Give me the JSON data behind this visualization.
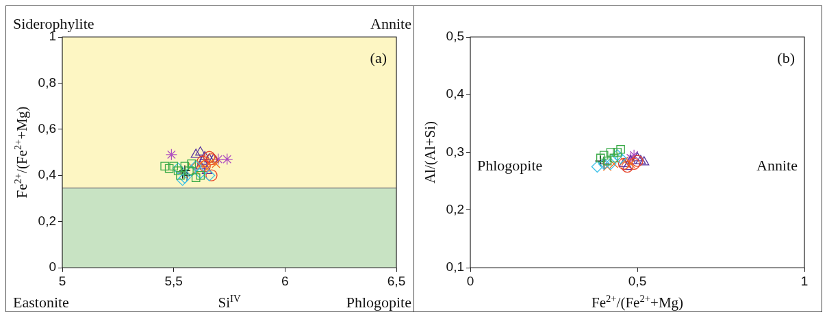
{
  "chart_data": [
    {
      "type": "scatter",
      "xlabel": "Si$^{IV}$",
      "ylabel": "Fe$^{2+}$/(Fe$^{2+}$+Mg)",
      "xlim": [
        5,
        6.5
      ],
      "ylim": [
        0,
        1
      ],
      "xticks": [
        5,
        {
          "value": 5.5,
          "label": "5,5"
        },
        6,
        {
          "value": 6.5,
          "label": "6,5"
        }
      ],
      "yticks": [
        0,
        {
          "value": 0.2,
          "label": "0,2"
        },
        {
          "value": 0.4,
          "label": "0,4"
        },
        {
          "value": 0.6,
          "label": "0,6"
        },
        {
          "value": 0.8,
          "label": "0,8"
        },
        1
      ],
      "bands": [
        {
          "axis": "y",
          "from": 0,
          "to": 0.345,
          "color": "#c8e3c3"
        },
        {
          "axis": "y",
          "from": 0.345,
          "to": 1,
          "color": "#fdf6c3"
        }
      ],
      "ref_lines": [
        {
          "axis": "y",
          "value": 0.345,
          "color": "#555566"
        }
      ],
      "annotations": [
        "(a)",
        "Siderophylite",
        "Annite",
        "Eastonite",
        "Phlogopite"
      ],
      "series": [
        {
          "color": "#3aaa48",
          "marker": "square",
          "x": [
            5.46,
            5.48,
            5.5,
            5.52,
            5.53,
            5.55,
            5.57,
            5.58,
            5.6,
            5.62
          ],
          "values": [
            0.44,
            0.43,
            0.44,
            0.42,
            0.4,
            0.44,
            0.42,
            0.45,
            0.39,
            0.4
          ]
        },
        {
          "color": "#3cc0e8",
          "marker": "diamond",
          "x": [
            5.52,
            5.55,
            5.58,
            5.6,
            5.62,
            5.66,
            5.54
          ],
          "values": [
            0.43,
            0.39,
            0.42,
            0.44,
            0.41,
            0.4,
            0.38
          ]
        },
        {
          "color": "#f07020",
          "marker": "x",
          "x": [
            5.58,
            5.62,
            5.65,
            5.67,
            5.69,
            5.6
          ],
          "values": [
            0.44,
            0.45,
            0.43,
            0.46,
            0.45,
            0.42
          ]
        },
        {
          "color": "#e8452a",
          "marker": "circle",
          "x": [
            5.63,
            5.66,
            5.67,
            5.64,
            5.67
          ],
          "values": [
            0.46,
            0.48,
            0.47,
            0.44,
            0.4
          ]
        },
        {
          "color": "#5a35a0",
          "marker": "triangle",
          "x": [
            5.6,
            5.62,
            5.64,
            5.63,
            5.66,
            5.68,
            5.62,
            5.65
          ],
          "values": [
            0.49,
            0.5,
            0.48,
            0.46,
            0.47,
            0.47,
            0.44,
            0.42
          ]
        },
        {
          "color": "#b050c0",
          "x": [
            5.49,
            5.74,
            5.7
          ],
          "values": [
            0.49,
            0.47,
            0.47
          ]
        },
        {
          "color": "#1a1a1a",
          "marker": "cross",
          "x": [
            5.54,
            5.56,
            5.55
          ],
          "values": [
            0.41,
            0.4,
            0.42
          ]
        }
      ]
    },
    {
      "type": "scatter",
      "xlabel": "Fe$^{2+}$/(Fe$^{2+}$+Mg)",
      "ylabel": "Al/(Al+Si)",
      "xlim": [
        0,
        1
      ],
      "ylim": [
        0.1,
        0.5
      ],
      "xticks": [
        0,
        {
          "value": 0.5,
          "label": "0,5"
        },
        1
      ],
      "yticks": [
        {
          "value": 0.1,
          "label": "0,1"
        },
        {
          "value": 0.2,
          "label": "0,2"
        },
        {
          "value": 0.3,
          "label": "0,3"
        },
        {
          "value": 0.4,
          "label": "0,4"
        },
        {
          "value": 0.5,
          "label": "0,5"
        }
      ],
      "annotations": [
        "(b)",
        "Phlogopite",
        "Annite"
      ],
      "series": [
        {
          "color": "#3aaa48",
          "marker": "square",
          "x": [
            0.39,
            0.4,
            0.42,
            0.44,
            0.45,
            0.43,
            0.41
          ],
          "values": [
            0.29,
            0.295,
            0.3,
            0.3,
            0.305,
            0.29,
            0.285
          ]
        },
        {
          "color": "#3cc0e8",
          "marker": "diamond",
          "x": [
            0.38,
            0.4,
            0.44,
            0.45,
            0.42
          ],
          "values": [
            0.275,
            0.28,
            0.295,
            0.29,
            0.28
          ]
        },
        {
          "color": "#f07020",
          "marker": "x",
          "x": [
            0.41,
            0.43,
            0.46,
            0.48
          ],
          "values": [
            0.275,
            0.28,
            0.285,
            0.28
          ]
        },
        {
          "color": "#e8452a",
          "marker": "circle",
          "x": [
            0.46,
            0.47,
            0.49,
            0.5
          ],
          "values": [
            0.28,
            0.275,
            0.28,
            0.285
          ]
        },
        {
          "color": "#5a35a0",
          "marker": "triangle",
          "x": [
            0.46,
            0.48,
            0.5,
            0.51,
            0.47,
            0.52
          ],
          "values": [
            0.28,
            0.285,
            0.29,
            0.285,
            0.275,
            0.283
          ]
        },
        {
          "color": "#b050c0",
          "x": [
            0.48,
            0.49
          ],
          "values": [
            0.29,
            0.295
          ]
        },
        {
          "color": "#1a1a1a",
          "marker": "cross",
          "x": [
            0.39,
            0.4
          ],
          "values": [
            0.285,
            0.28
          ]
        }
      ]
    }
  ]
}
